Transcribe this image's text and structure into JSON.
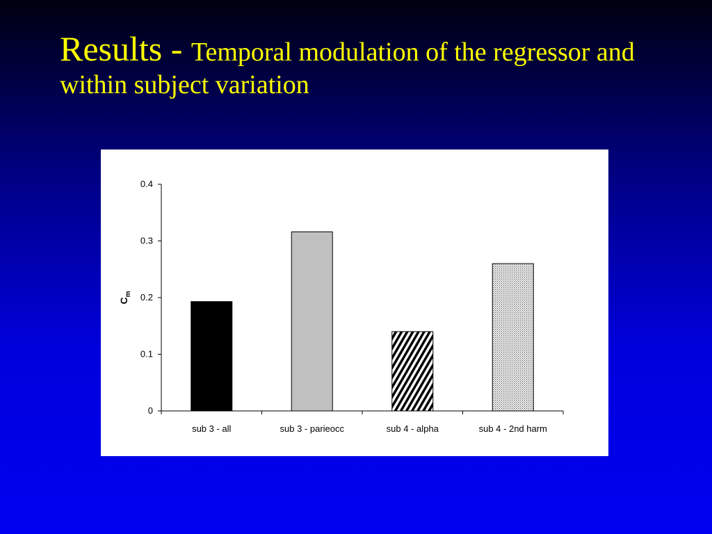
{
  "slide": {
    "title_main": "Results - ",
    "title_sub": "Temporal modulation of the regressor and within subject variation"
  },
  "chart_data": {
    "type": "bar",
    "categories": [
      "sub 3 - all",
      "sub 3 - parieocc",
      "sub 4 - alpha",
      "sub 4 - 2nd harm"
    ],
    "values": [
      0.193,
      0.316,
      0.14,
      0.26
    ],
    "ylabel": "C",
    "ylabel_sub": "m",
    "ylim": [
      0,
      0.4
    ],
    "yticks": [
      "0",
      "0.1",
      "0.2",
      "0.3",
      "0.4"
    ],
    "grid": false,
    "bar_styles": [
      "solid-black",
      "solid-gray",
      "diagonal-hatch",
      "fine-dots"
    ],
    "colors": {
      "background_top": "#000010",
      "background_bottom": "#0000f0",
      "title": "#ffff00",
      "bar_black": "#000000",
      "bar_gray": "#c0c0c0"
    }
  }
}
